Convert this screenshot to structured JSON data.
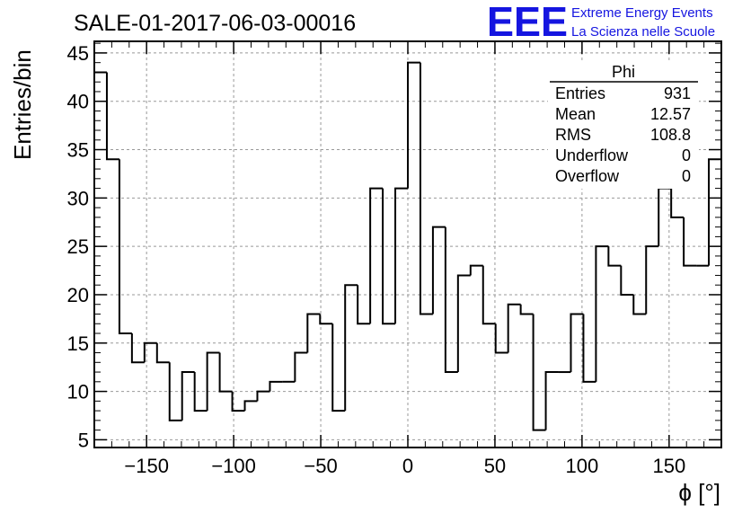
{
  "title": "SALE-01-2017-06-03-00016",
  "logo": {
    "mark": "EEE",
    "line1": "Extreme Energy Events",
    "line2": "La Scienza nelle Scuole",
    "color": "#1515e0"
  },
  "stats_box": {
    "name": "Phi",
    "rows": [
      {
        "label": "Entries",
        "value": "931"
      },
      {
        "label": "Mean",
        "value": "12.57"
      },
      {
        "label": "RMS",
        "value": "108.8"
      },
      {
        "label": "Underflow",
        "value": "0"
      },
      {
        "label": "Overflow",
        "value": "0"
      }
    ]
  },
  "chart_data": {
    "type": "bar",
    "style": "step-histogram",
    "title": "SALE-01-2017-06-03-00016",
    "xlabel": "ϕ [°]",
    "ylabel": "Entries/bin",
    "xlim": [
      -180,
      180
    ],
    "ylim": [
      4.2,
      46.2
    ],
    "bin_width": 7.2,
    "bin_start": -180,
    "values": [
      43,
      34,
      16,
      13,
      15,
      13,
      7,
      12,
      8,
      14,
      10,
      8,
      9,
      10,
      11,
      11,
      14,
      18,
      17,
      8,
      21,
      17,
      31,
      17,
      31,
      44,
      18,
      27,
      12,
      22,
      23,
      17,
      14,
      19,
      18,
      6,
      12,
      12,
      18,
      11,
      25,
      23,
      20,
      18,
      25,
      31,
      28,
      23,
      23,
      34
    ],
    "xticks": [
      -150,
      -100,
      -50,
      0,
      50,
      100,
      150
    ],
    "yticks": [
      5,
      10,
      15,
      20,
      25,
      30,
      35,
      40,
      45
    ],
    "grid": true,
    "legend": "none",
    "line_color": "#000000"
  }
}
